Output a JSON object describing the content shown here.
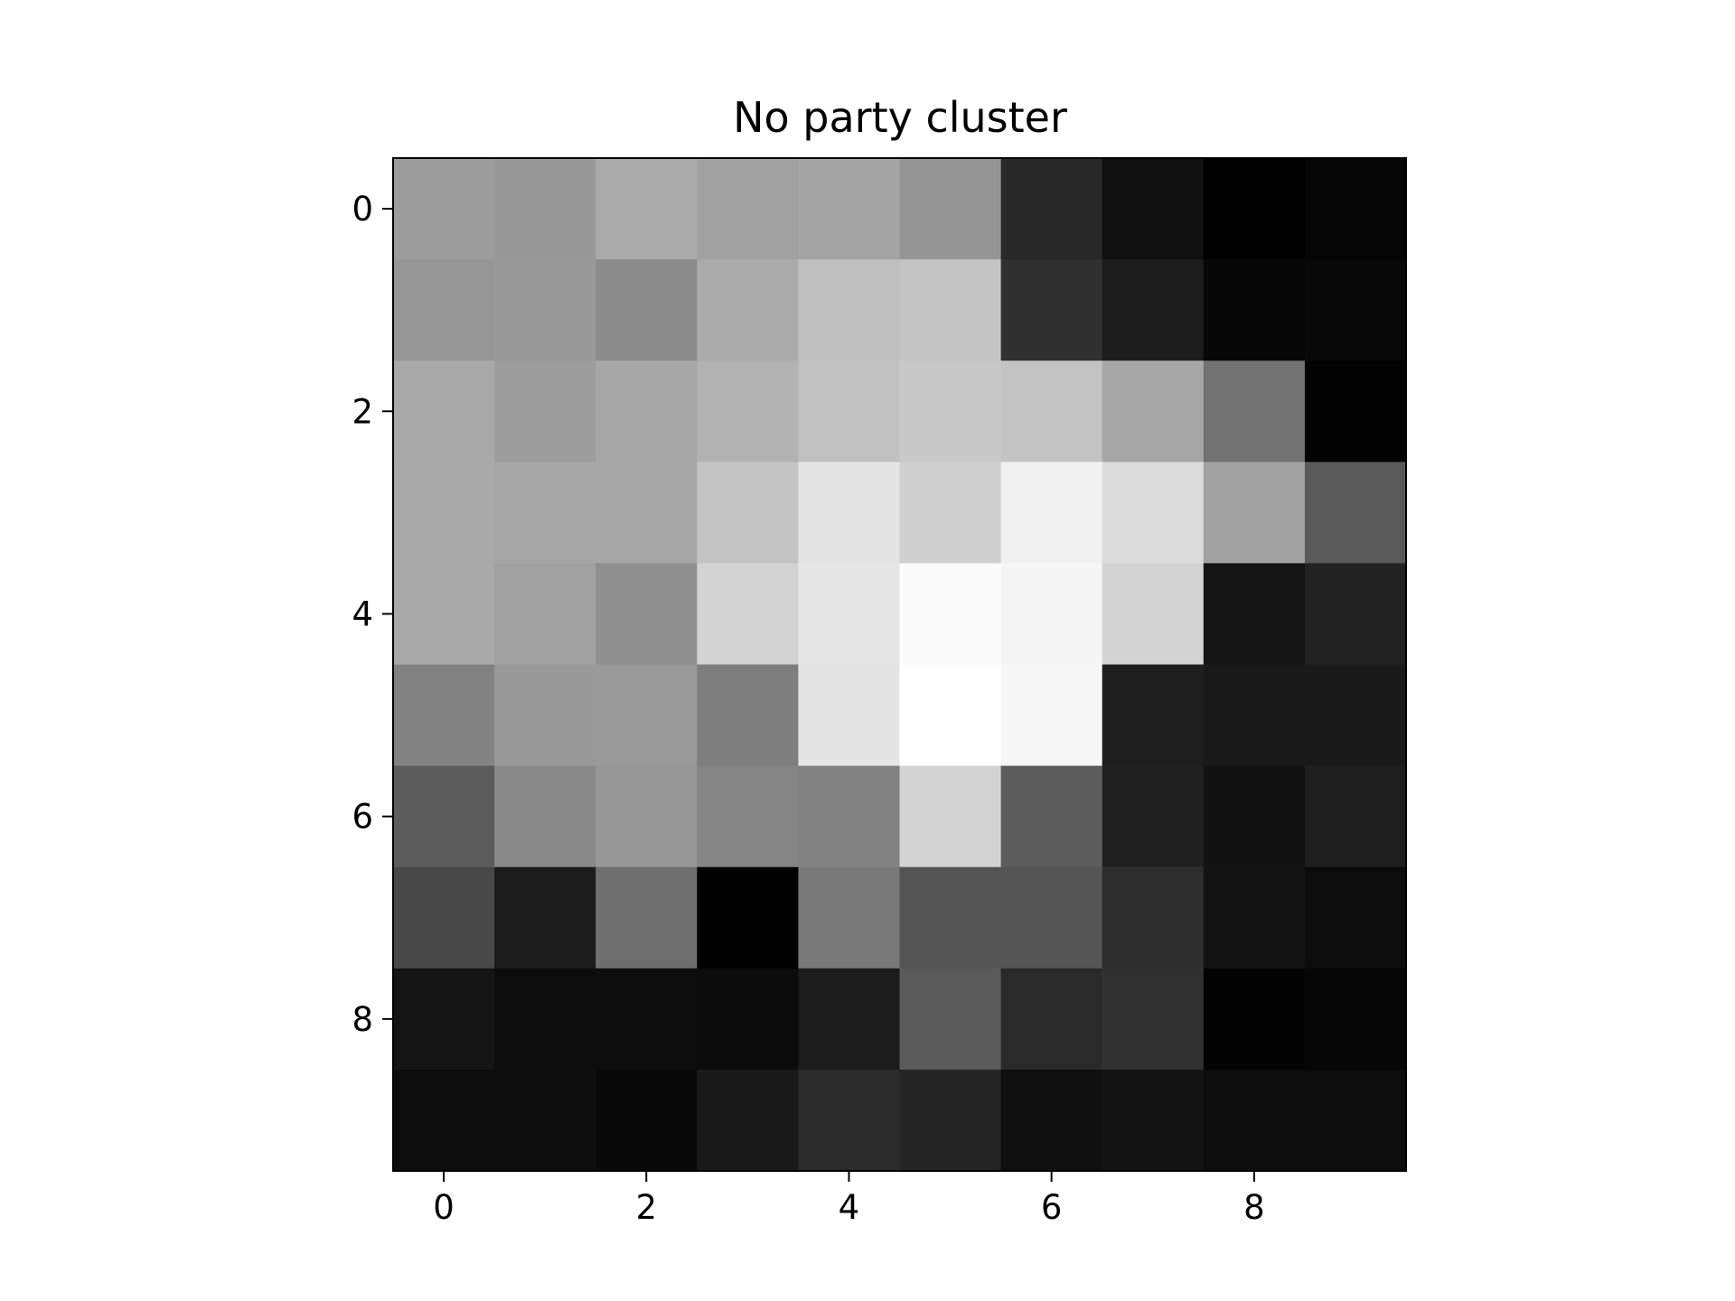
{
  "chart_data": {
    "type": "heatmap",
    "title": "No party cluster",
    "xlabel": "",
    "ylabel": "",
    "colormap": "gray",
    "color_low": "#000000",
    "color_high": "#ffffff",
    "n_rows": 10,
    "n_cols": 10,
    "xlim": [
      -0.5,
      9.5
    ],
    "ylim": [
      9.5,
      -0.5
    ],
    "x_ticks": [
      0,
      2,
      4,
      6,
      8
    ],
    "y_ticks": [
      0,
      2,
      4,
      6,
      8
    ],
    "x_tick_labels": [
      "0",
      "2",
      "4",
      "6",
      "8"
    ],
    "y_tick_labels": [
      "0",
      "2",
      "4",
      "6",
      "8"
    ],
    "grid": false,
    "values": [
      [
        157,
        152,
        170,
        161,
        164,
        149,
        40,
        16,
        0,
        5
      ],
      [
        150,
        153,
        139,
        170,
        191,
        196,
        48,
        28,
        7,
        8
      ],
      [
        169,
        157,
        167,
        178,
        192,
        200,
        195,
        166,
        114,
        2
      ],
      [
        169,
        166,
        167,
        195,
        228,
        207,
        241,
        219,
        161,
        89
      ],
      [
        169,
        161,
        143,
        211,
        230,
        251,
        245,
        211,
        21,
        34
      ],
      [
        130,
        153,
        154,
        126,
        229,
        255,
        247,
        30,
        25,
        25
      ],
      [
        92,
        137,
        151,
        133,
        130,
        211,
        92,
        32,
        18,
        30
      ],
      [
        72,
        27,
        111,
        0,
        121,
        84,
        85,
        45,
        19,
        12
      ],
      [
        20,
        12,
        12,
        11,
        27,
        90,
        42,
        49,
        3,
        6
      ],
      [
        12,
        13,
        8,
        25,
        43,
        37,
        15,
        19,
        12,
        12
      ]
    ]
  }
}
